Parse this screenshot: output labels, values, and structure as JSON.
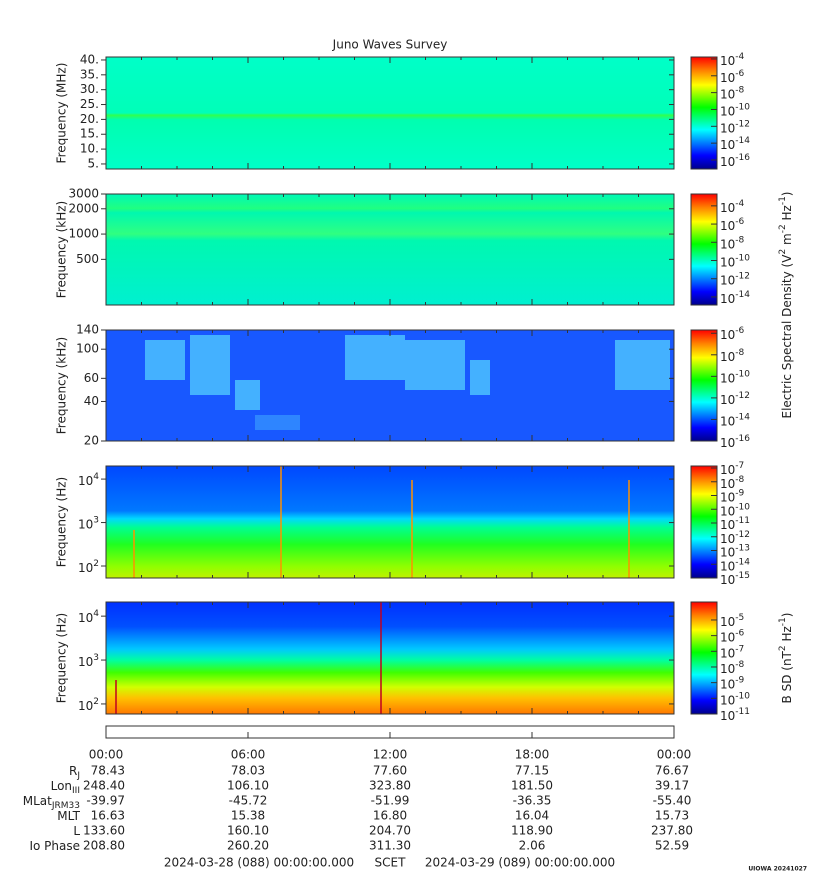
{
  "title": "Juno Waves Survey",
  "panels": [
    {
      "ylabel": "Frequency (MHz)",
      "log": false,
      "ylim": [
        3.3,
        41
      ],
      "yticks": [
        {
          "value": 5,
          "label": "5."
        },
        {
          "value": 10,
          "label": "10."
        },
        {
          "value": 15,
          "label": "15."
        },
        {
          "value": 20,
          "label": "20."
        },
        {
          "value": 25,
          "label": "25."
        },
        {
          "value": 30,
          "label": "30."
        },
        {
          "value": 35,
          "label": "35."
        },
        {
          "value": 40,
          "label": "40."
        }
      ],
      "cbar": {
        "clim": [
          8.5e-18,
          0.00017
        ],
        "ticks": [
          {
            "value": 0.0001,
            "label": {
              "base": "10",
              "exp": "-4"
            }
          },
          {
            "value": 1e-06,
            "label": {
              "base": "10",
              "exp": "-6"
            }
          },
          {
            "value": 1e-08,
            "label": {
              "base": "10",
              "exp": "-8"
            }
          },
          {
            "value": 1e-10,
            "label": {
              "base": "10",
              "exp": "-10"
            }
          },
          {
            "value": 1e-12,
            "label": {
              "base": "10",
              "exp": "-12"
            }
          },
          {
            "value": 1e-14,
            "label": {
              "base": "10",
              "exp": "-14"
            }
          },
          {
            "value": 1e-16,
            "label": {
              "base": "10",
              "exp": "-16"
            }
          }
        ]
      }
    },
    {
      "ylabel": "Frequency (kHz)",
      "log": true,
      "ylim": [
        143,
        3000
      ],
      "yticks": [
        500,
        1000,
        2000,
        3000
      ],
      "cbar": {
        "clim": [
          1.3e-15,
          0.002
        ],
        "ticks": [
          {
            "value": 0.0001,
            "label": {
              "base": "10",
              "exp": "-4"
            }
          },
          {
            "value": 1e-06,
            "label": {
              "base": "10",
              "exp": "-6"
            }
          },
          {
            "value": 1e-08,
            "label": {
              "base": "10",
              "exp": "-8"
            }
          },
          {
            "value": 1e-10,
            "label": {
              "base": "10",
              "exp": "-10"
            }
          },
          {
            "value": 1e-12,
            "label": {
              "base": "10",
              "exp": "-12"
            }
          },
          {
            "value": 1e-14,
            "label": {
              "base": "10",
              "exp": "-14"
            }
          }
        ]
      }
    },
    {
      "ylabel": "Frequency (kHz)",
      "log": true,
      "ylim": [
        20,
        140
      ],
      "yticks": [
        20,
        40,
        60,
        100,
        140
      ],
      "cbar": {
        "clim": [
          1e-16,
          2e-06
        ],
        "ticks": [
          {
            "value": 1e-06,
            "label": {
              "base": "10",
              "exp": "-6"
            }
          },
          {
            "value": 1e-08,
            "label": {
              "base": "10",
              "exp": "-8"
            }
          },
          {
            "value": 1e-10,
            "label": {
              "base": "10",
              "exp": "-10"
            }
          },
          {
            "value": 1e-12,
            "label": {
              "base": "10",
              "exp": "-12"
            }
          },
          {
            "value": 1e-14,
            "label": {
              "base": "10",
              "exp": "-14"
            }
          },
          {
            "value": 1e-16,
            "label": {
              "base": "10",
              "exp": "-16"
            }
          }
        ]
      }
    },
    {
      "ylabel": "Frequency (Hz)",
      "log": true,
      "ylim": [
        53,
        20000
      ],
      "yticks": [
        {
          "value": 100,
          "label": {
            "base": "10",
            "exp": "2"
          }
        },
        {
          "value": 1000,
          "label": {
            "base": "10",
            "exp": "3"
          }
        },
        {
          "value": 10000,
          "label": {
            "base": "10",
            "exp": "4"
          }
        }
      ],
      "cbar": {
        "clim": [
          1e-15,
          1.4e-07
        ],
        "ticks": [
          {
            "value": 1e-07,
            "label": {
              "base": "10",
              "exp": "-7"
            }
          },
          {
            "value": 1e-08,
            "label": {
              "base": "10",
              "exp": "-8"
            }
          },
          {
            "value": 1e-09,
            "label": {
              "base": "10",
              "exp": "-9"
            }
          },
          {
            "value": 1e-10,
            "label": {
              "base": "10",
              "exp": "-10"
            }
          },
          {
            "value": 1e-11,
            "label": {
              "base": "10",
              "exp": "-11"
            }
          },
          {
            "value": 1e-12,
            "label": {
              "base": "10",
              "exp": "-12"
            }
          },
          {
            "value": 1e-13,
            "label": {
              "base": "10",
              "exp": "-13"
            }
          },
          {
            "value": 1e-14,
            "label": {
              "base": "10",
              "exp": "-14"
            }
          },
          {
            "value": 1e-15,
            "label": {
              "base": "10",
              "exp": "-15"
            }
          }
        ]
      }
    },
    {
      "ylabel": "Frequency (Hz)",
      "log": true,
      "ylim": [
        59,
        21000
      ],
      "yticks": [
        {
          "value": 100,
          "label": {
            "base": "10",
            "exp": "2"
          }
        },
        {
          "value": 1000,
          "label": {
            "base": "10",
            "exp": "3"
          }
        },
        {
          "value": 10000,
          "label": {
            "base": "10",
            "exp": "4"
          }
        }
      ],
      "cbar": {
        "clim": [
          1e-11,
          0.00014
        ],
        "ticks": [
          {
            "value": 1e-05,
            "label": {
              "base": "10",
              "exp": "-5"
            }
          },
          {
            "value": 1e-06,
            "label": {
              "base": "10",
              "exp": "-6"
            }
          },
          {
            "value": 1e-07,
            "label": {
              "base": "10",
              "exp": "-7"
            }
          },
          {
            "value": 1e-08,
            "label": {
              "base": "10",
              "exp": "-8"
            }
          },
          {
            "value": 1e-09,
            "label": {
              "base": "10",
              "exp": "-9"
            }
          },
          {
            "value": 1e-10,
            "label": {
              "base": "10",
              "exp": "-10"
            }
          },
          {
            "value": 1e-11,
            "label": {
              "base": "10",
              "exp": "-11"
            }
          }
        ]
      }
    }
  ],
  "cbar_labels": [
    [
      {
        "t": "Electric Spectral Density (V"
      },
      {
        "sup": "2"
      },
      {
        "t": " m"
      },
      {
        "sup": "-2"
      },
      {
        "t": " Hz"
      },
      {
        "sup": "-1"
      },
      {
        "t": ")"
      }
    ],
    [
      {
        "t": "B SD (nT"
      },
      {
        "sup": "2"
      },
      {
        "t": " Hz"
      },
      {
        "sup": "-1"
      },
      {
        "t": ")"
      }
    ]
  ],
  "time_ticks": [
    "00:00",
    "06:00",
    "12:00",
    "18:00",
    "00:00"
  ],
  "ephemeris": [
    {
      "label": [
        {
          "t": "R"
        },
        {
          "sub": "J"
        }
      ],
      "values": [
        "78.43",
        "78.03",
        "77.60",
        "77.15",
        "76.67"
      ]
    },
    {
      "label": [
        {
          "t": "Lon"
        },
        {
          "sub": "III"
        }
      ],
      "values": [
        "248.40",
        "106.10",
        "323.80",
        "181.50",
        "39.17"
      ]
    },
    {
      "label": [
        {
          "t": "MLat"
        },
        {
          "sub": "JRM33"
        }
      ],
      "values": [
        "-39.97",
        "-45.72",
        "-51.99",
        "-36.35",
        "-55.40"
      ]
    },
    {
      "label": [
        {
          "t": "MLT"
        }
      ],
      "values": [
        "16.63",
        "15.38",
        "16.80",
        "16.04",
        "15.73"
      ]
    },
    {
      "label": [
        {
          "t": "L"
        }
      ],
      "values": [
        "133.60",
        "160.10",
        "204.70",
        "118.90",
        "237.80"
      ]
    },
    {
      "label": [
        {
          "t": "Io Phase"
        }
      ],
      "values": [
        "208.80",
        "260.20",
        "311.30",
        "2.06",
        "52.59"
      ]
    }
  ],
  "scet": {
    "start": "2024-03-28 (088) 00:00:00.000",
    "label": "SCET",
    "end": "2024-03-29 (089) 00:00:00.000"
  },
  "footer": "UIOWA 20241027"
}
